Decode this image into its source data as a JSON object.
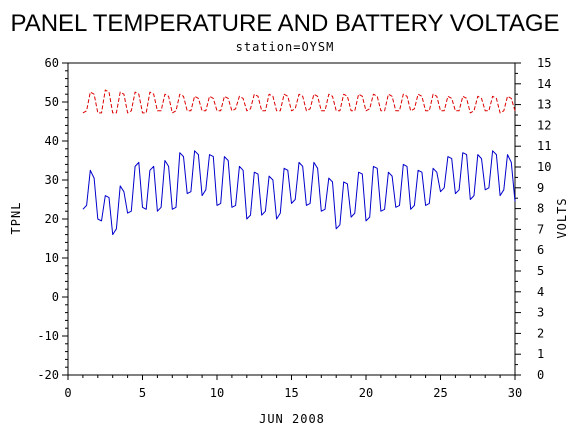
{
  "chart_data": {
    "type": "line",
    "title": "PANEL TEMPERATURE AND BATTERY VOLTAGE",
    "subtitle": "station=OYSM",
    "xlabel": "JUN 2008",
    "ylabel_left": "TPNL",
    "ylabel_right": "VOLTS",
    "xlim": [
      0,
      30
    ],
    "ylim_left": [
      -20,
      60
    ],
    "ylim_right": [
      0,
      15
    ],
    "x_ticks": [
      0,
      5,
      10,
      15,
      20,
      25,
      30
    ],
    "y_ticks_left": [
      -20,
      -10,
      0,
      10,
      20,
      30,
      40,
      50,
      60
    ],
    "y_ticks_right": [
      0,
      1,
      2,
      3,
      4,
      5,
      6,
      7,
      8,
      9,
      10,
      11,
      12,
      13,
      14,
      15
    ],
    "series": [
      {
        "name": "TPNL",
        "axis": "left",
        "color": "#0000cc",
        "style": "solid",
        "x": [
          1.0,
          1.25,
          1.5,
          1.75,
          2.0,
          2.25,
          2.5,
          2.75,
          3.0,
          3.25,
          3.5,
          3.75,
          4.0,
          4.25,
          4.5,
          4.75,
          5.0,
          5.25,
          5.5,
          5.75,
          6.0,
          6.25,
          6.5,
          6.75,
          7.0,
          7.25,
          7.5,
          7.75,
          8.0,
          8.25,
          8.5,
          8.75,
          9.0,
          9.25,
          9.5,
          9.75,
          10.0,
          10.25,
          10.5,
          10.75,
          11.0,
          11.25,
          11.5,
          11.75,
          12.0,
          12.25,
          12.5,
          12.75,
          13.0,
          13.25,
          13.5,
          13.75,
          14.0,
          14.25,
          14.5,
          14.75,
          15.0,
          15.25,
          15.5,
          15.75,
          16.0,
          16.25,
          16.5,
          16.75,
          17.0,
          17.25,
          17.5,
          17.75,
          18.0,
          18.25,
          18.5,
          18.75,
          19.0,
          19.25,
          19.5,
          19.75,
          20.0,
          20.25,
          20.5,
          20.75,
          21.0,
          21.25,
          21.5,
          21.75,
          22.0,
          22.25,
          22.5,
          22.75,
          23.0,
          23.25,
          23.5,
          23.75,
          24.0,
          24.25,
          24.5,
          24.75,
          25.0,
          25.25,
          25.5,
          25.75,
          26.0,
          26.25,
          26.5,
          26.75,
          27.0,
          27.25,
          27.5,
          27.75,
          28.0,
          28.25,
          28.5,
          28.75,
          29.0,
          29.25,
          29.5,
          29.75,
          30.0
        ],
        "values": [
          22.5,
          23.5,
          32.5,
          30.5,
          20.0,
          19.5,
          26.0,
          25.5,
          16.0,
          17.5,
          28.5,
          27.0,
          21.5,
          22.0,
          33.5,
          34.5,
          23.0,
          22.5,
          32.5,
          33.5,
          22.0,
          23.0,
          35.0,
          33.5,
          22.5,
          23.0,
          37.0,
          36.0,
          26.5,
          27.0,
          37.5,
          36.5,
          26.0,
          27.5,
          36.5,
          36.0,
          23.5,
          24.0,
          36.0,
          35.0,
          23.0,
          23.5,
          33.5,
          32.5,
          20.0,
          21.0,
          32.0,
          31.5,
          21.0,
          22.0,
          31.0,
          30.0,
          20.0,
          21.5,
          33.0,
          32.5,
          24.0,
          25.0,
          34.5,
          33.5,
          23.5,
          24.0,
          34.5,
          33.0,
          22.0,
          22.5,
          30.5,
          29.5,
          17.5,
          18.5,
          29.5,
          29.0,
          20.5,
          21.5,
          32.0,
          31.5,
          19.5,
          20.5,
          33.5,
          33.0,
          22.0,
          22.5,
          32.0,
          31.0,
          23.0,
          23.5,
          34.0,
          33.5,
          22.5,
          23.5,
          32.5,
          32.0,
          23.5,
          24.0,
          33.0,
          32.0,
          27.0,
          28.0,
          36.0,
          35.5,
          26.5,
          27.5,
          37.0,
          36.5,
          25.0,
          26.0,
          36.5,
          35.5,
          27.5,
          28.0,
          37.5,
          36.5,
          26.0,
          27.5,
          36.5,
          34.5,
          24.5
        ]
      },
      {
        "name": "VOLTS",
        "axis": "right",
        "color": "#dd0000",
        "style": "dashed",
        "x": [
          1.0,
          1.25,
          1.5,
          1.75,
          2.0,
          2.25,
          2.5,
          2.75,
          3.0,
          3.25,
          3.5,
          3.75,
          4.0,
          4.25,
          4.5,
          4.75,
          5.0,
          5.25,
          5.5,
          5.75,
          6.0,
          6.25,
          6.5,
          6.75,
          7.0,
          7.25,
          7.5,
          7.75,
          8.0,
          8.25,
          8.5,
          8.75,
          9.0,
          9.25,
          9.5,
          9.75,
          10.0,
          10.25,
          10.5,
          10.75,
          11.0,
          11.25,
          11.5,
          11.75,
          12.0,
          12.25,
          12.5,
          12.75,
          13.0,
          13.25,
          13.5,
          13.75,
          14.0,
          14.25,
          14.5,
          14.75,
          15.0,
          15.25,
          15.5,
          15.75,
          16.0,
          16.25,
          16.5,
          16.75,
          17.0,
          17.25,
          17.5,
          17.75,
          18.0,
          18.25,
          18.5,
          18.75,
          19.0,
          19.25,
          19.5,
          19.75,
          20.0,
          20.25,
          20.5,
          20.75,
          21.0,
          21.25,
          21.5,
          21.75,
          22.0,
          22.25,
          22.5,
          22.75,
          23.0,
          23.25,
          23.5,
          23.75,
          24.0,
          24.25,
          24.5,
          24.75,
          25.0,
          25.25,
          25.5,
          25.75,
          26.0,
          26.25,
          26.5,
          26.75,
          27.0,
          27.25,
          27.5,
          27.75,
          28.0,
          28.25,
          28.5,
          28.75,
          29.0,
          29.25,
          29.5,
          29.75,
          30.0
        ],
        "values": [
          12.6,
          12.7,
          13.6,
          13.5,
          12.6,
          12.6,
          13.7,
          13.6,
          12.6,
          12.6,
          13.6,
          13.5,
          12.6,
          12.7,
          13.6,
          13.5,
          12.6,
          12.6,
          13.6,
          13.5,
          12.7,
          12.7,
          13.5,
          13.4,
          12.6,
          12.7,
          13.5,
          13.4,
          12.7,
          12.7,
          13.4,
          13.3,
          12.7,
          12.7,
          13.4,
          13.3,
          12.7,
          12.7,
          13.4,
          13.3,
          12.7,
          12.8,
          13.4,
          13.3,
          12.7,
          12.8,
          13.5,
          13.4,
          12.7,
          12.7,
          13.5,
          13.4,
          12.7,
          12.7,
          13.5,
          13.4,
          12.7,
          12.8,
          13.5,
          13.4,
          12.7,
          12.8,
          13.5,
          13.4,
          12.7,
          12.7,
          13.5,
          13.4,
          12.7,
          12.7,
          13.5,
          13.4,
          12.7,
          12.7,
          13.5,
          13.4,
          12.7,
          12.8,
          13.5,
          13.4,
          12.7,
          12.7,
          13.5,
          13.4,
          12.7,
          12.7,
          13.5,
          13.4,
          12.7,
          12.8,
          13.5,
          13.4,
          12.7,
          12.7,
          13.5,
          13.4,
          12.7,
          12.7,
          13.4,
          13.3,
          12.7,
          12.7,
          13.4,
          13.3,
          12.6,
          12.7,
          13.4,
          13.3,
          12.7,
          12.7,
          13.4,
          13.3,
          12.6,
          12.7,
          13.4,
          13.3,
          12.7
        ]
      }
    ],
    "grid": false,
    "legend": "none"
  }
}
